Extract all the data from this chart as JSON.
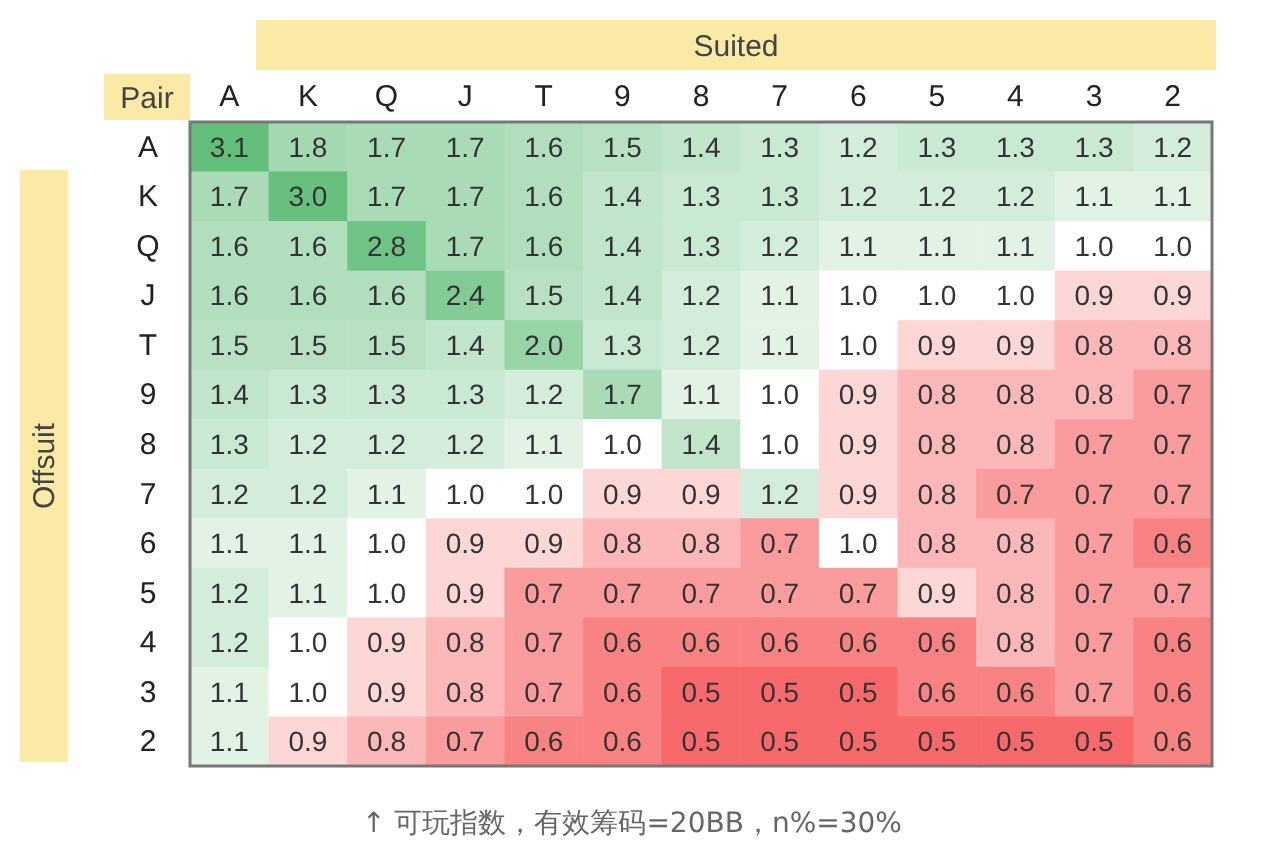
{
  "chart_data": {
    "type": "heatmap",
    "xlabel": "Suited",
    "cell_labels": [
      [
        "3.1",
        "1.8",
        "1.7",
        "1.7",
        "1.6",
        "1.5",
        "1.4",
        "1.3",
        "1.2",
        "1.3",
        "1.3",
        "1.3",
        "1.2"
      ],
      [
        "1.7",
        "3.0",
        "1.7",
        "1.7",
        "1.6",
        "1.4",
        "1.3",
        "1.3",
        "1.2",
        "1.2",
        "1.2",
        "1.1",
        "1.1"
      ],
      [
        "1.6",
        "1.6",
        "2.8",
        "1.7",
        "1.6",
        "1.4",
        "1.3",
        "1.2",
        "1.1",
        "1.1",
        "1.1",
        "1.0",
        "1.0"
      ],
      [
        "1.6",
        "1.6",
        "1.6",
        "2.4",
        "1.5",
        "1.4",
        "1.2",
        "1.1",
        "1.0",
        "1.0",
        "1.0",
        "0.9",
        "0.9"
      ],
      [
        "1.5",
        "1.5",
        "1.5",
        "1.4",
        "2.0",
        "1.3",
        "1.2",
        "1.1",
        "1.0",
        "0.9",
        "0.9",
        "0.8",
        "0.8"
      ],
      [
        "1.4",
        "1.3",
        "1.3",
        "1.3",
        "1.2",
        "1.7",
        "1.1",
        "1.0",
        "0.9",
        "0.8",
        "0.8",
        "0.8",
        "0.7"
      ],
      [
        "1.3",
        "1.2",
        "1.2",
        "1.2",
        "1.1",
        "1.0",
        "1.4",
        "1.0",
        "0.9",
        "0.8",
        "0.8",
        "0.7",
        "0.7"
      ],
      [
        "1.2",
        "1.2",
        "1.1",
        "1.0",
        "1.0",
        "0.9",
        "0.9",
        "1.2",
        "0.9",
        "0.8",
        "0.7",
        "0.7",
        "0.7"
      ],
      [
        "1.1",
        "1.1",
        "1.0",
        "0.9",
        "0.9",
        "0.8",
        "0.8",
        "0.7",
        "1.0",
        "0.8",
        "0.8",
        "0.7",
        "0.6"
      ],
      [
        "1.2",
        "1.1",
        "1.0",
        "0.9",
        "0.7",
        "0.7",
        "0.7",
        "0.7",
        "0.7",
        "0.9",
        "0.8",
        "0.7",
        "0.7"
      ],
      [
        "1.2",
        "1.0",
        "0.9",
        "0.8",
        "0.7",
        "0.6",
        "0.6",
        "0.6",
        "0.6",
        "0.6",
        "0.8",
        "0.7",
        "0.6"
      ],
      [
        "1.1",
        "1.0",
        "0.9",
        "0.8",
        "0.7",
        "0.6",
        "0.5",
        "0.5",
        "0.5",
        "0.6",
        "0.6",
        "0.7",
        "0.6"
      ],
      [
        "1.1",
        "0.9",
        "0.8",
        "0.7",
        "0.6",
        "0.6",
        "0.5",
        "0.5",
        "0.5",
        "0.5",
        "0.5",
        "0.5",
        "0.6"
      ]
    ],
    "ylabel": "Offsuit",
    "annotations": [
      "Pair",
      "↑ 可玩指数，有效筹码=20BB，n%=30%"
    ],
    "categories": [
      "A",
      "K",
      "Q",
      "J",
      "T",
      "9",
      "8",
      "7",
      "6",
      "5",
      "4",
      "3",
      "2"
    ],
    "y_categories": [
      "A",
      "K",
      "Q",
      "J",
      "T",
      "9",
      "8",
      "7",
      "6",
      "5",
      "4",
      "3",
      "2"
    ],
    "cells": [
      [
        3.1,
        1.8,
        1.7,
        1.7,
        1.6,
        1.5,
        1.4,
        1.3,
        1.2,
        1.3,
        1.3,
        1.3,
        1.2
      ],
      [
        1.7,
        3.0,
        1.7,
        1.7,
        1.6,
        1.4,
        1.3,
        1.3,
        1.2,
        1.2,
        1.2,
        1.1,
        1.1
      ],
      [
        1.6,
        1.6,
        2.8,
        1.7,
        1.6,
        1.4,
        1.3,
        1.2,
        1.1,
        1.1,
        1.1,
        1.0,
        1.0
      ],
      [
        1.6,
        1.6,
        1.6,
        2.4,
        1.5,
        1.4,
        1.2,
        1.1,
        1.0,
        1.0,
        1.0,
        0.9,
        0.9
      ],
      [
        1.5,
        1.5,
        1.5,
        1.4,
        2.0,
        1.3,
        1.2,
        1.1,
        1.0,
        0.9,
        0.9,
        0.8,
        0.8
      ],
      [
        1.4,
        1.3,
        1.3,
        1.3,
        1.2,
        1.7,
        1.1,
        1.0,
        0.9,
        0.8,
        0.8,
        0.8,
        0.7
      ],
      [
        1.3,
        1.2,
        1.2,
        1.2,
        1.1,
        1.0,
        1.4,
        1.0,
        0.9,
        0.8,
        0.8,
        0.7,
        0.7
      ],
      [
        1.2,
        1.2,
        1.1,
        1.0,
        1.0,
        0.9,
        0.9,
        1.2,
        0.9,
        0.8,
        0.7,
        0.7,
        0.7
      ],
      [
        1.1,
        1.1,
        1.0,
        0.9,
        0.9,
        0.8,
        0.8,
        0.7,
        1.0,
        0.8,
        0.8,
        0.7,
        0.6
      ],
      [
        1.2,
        1.1,
        1.0,
        0.9,
        0.7,
        0.7,
        0.7,
        0.7,
        0.7,
        0.9,
        0.8,
        0.7,
        0.7
      ],
      [
        1.2,
        1.0,
        0.9,
        0.8,
        0.7,
        0.6,
        0.6,
        0.6,
        0.6,
        0.6,
        0.8,
        0.7,
        0.6
      ],
      [
        1.1,
        1.0,
        0.9,
        0.8,
        0.7,
        0.6,
        0.5,
        0.5,
        0.5,
        0.6,
        0.6,
        0.7,
        0.6
      ],
      [
        1.1,
        0.9,
        0.8,
        0.7,
        0.6,
        0.6,
        0.5,
        0.5,
        0.5,
        0.5,
        0.5,
        0.5,
        0.6
      ]
    ]
  }
}
